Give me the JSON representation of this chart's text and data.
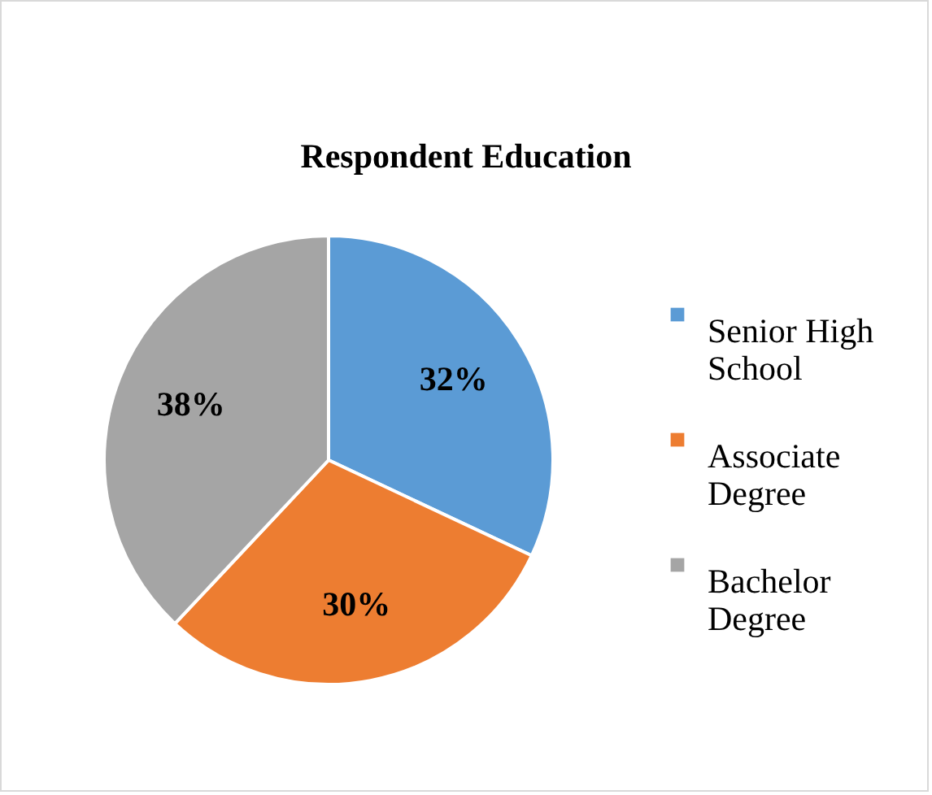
{
  "chart_data": {
    "type": "pie",
    "title": "Respondent Education",
    "categories": [
      "Senior High School",
      "Associate Degree",
      "Bachelor Degree"
    ],
    "values": [
      32,
      30,
      38
    ],
    "value_labels": [
      "32%",
      "30%",
      "38%"
    ],
    "colors": [
      "#5b9bd5",
      "#ed7d31",
      "#a5a5a5"
    ],
    "legend": "right"
  }
}
